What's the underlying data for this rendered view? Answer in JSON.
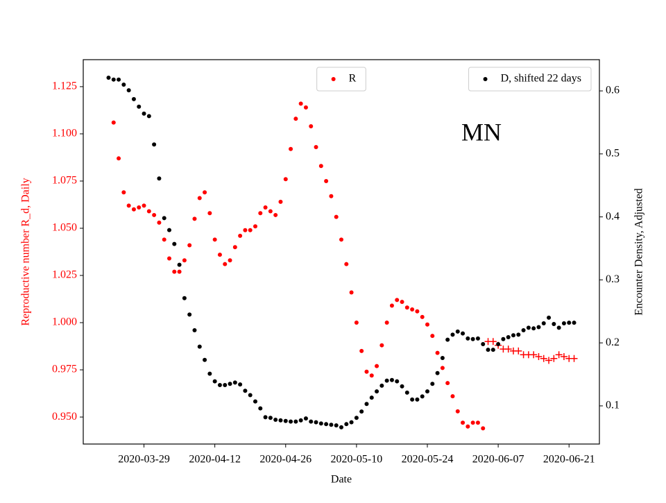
{
  "chart_data": {
    "type": "scatter",
    "annotation": "MN",
    "xlabel": "Date",
    "ylabel": "Reproductive number R_d, Daily",
    "y2label": "Encounter Density, Adjusted",
    "ylabel_color": "#ff0000",
    "x": [
      "2020-03-22",
      "2020-03-23",
      "2020-03-24",
      "2020-03-25",
      "2020-03-26",
      "2020-03-27",
      "2020-03-28",
      "2020-03-29",
      "2020-03-30",
      "2020-03-31",
      "2020-04-01",
      "2020-04-02",
      "2020-04-03",
      "2020-04-04",
      "2020-04-05",
      "2020-04-06",
      "2020-04-07",
      "2020-04-08",
      "2020-04-09",
      "2020-04-10",
      "2020-04-11",
      "2020-04-12",
      "2020-04-13",
      "2020-04-14",
      "2020-04-15",
      "2020-04-16",
      "2020-04-17",
      "2020-04-18",
      "2020-04-19",
      "2020-04-20",
      "2020-04-21",
      "2020-04-22",
      "2020-04-23",
      "2020-04-24",
      "2020-04-25",
      "2020-04-26",
      "2020-04-27",
      "2020-04-28",
      "2020-04-29",
      "2020-04-30",
      "2020-05-01",
      "2020-05-02",
      "2020-05-03",
      "2020-05-04",
      "2020-05-05",
      "2020-05-06",
      "2020-05-07",
      "2020-05-08",
      "2020-05-09",
      "2020-05-10",
      "2020-05-11",
      "2020-05-12",
      "2020-05-13",
      "2020-05-14",
      "2020-05-15",
      "2020-05-16",
      "2020-05-17",
      "2020-05-18",
      "2020-05-19",
      "2020-05-20",
      "2020-05-21",
      "2020-05-22",
      "2020-05-23",
      "2020-05-24",
      "2020-05-25",
      "2020-05-26",
      "2020-05-27",
      "2020-05-28",
      "2020-05-29",
      "2020-05-30",
      "2020-05-31",
      "2020-06-01",
      "2020-06-02",
      "2020-06-03",
      "2020-06-04",
      "2020-06-05",
      "2020-06-06",
      "2020-06-07",
      "2020-06-08",
      "2020-06-09",
      "2020-06-10",
      "2020-06-11",
      "2020-06-12",
      "2020-06-13",
      "2020-06-14",
      "2020-06-15",
      "2020-06-16",
      "2020-06-17",
      "2020-06-18",
      "2020-06-19",
      "2020-06-20",
      "2020-06-21",
      "2020-06-22"
    ],
    "xlim": [
      "2020-03-17",
      "2020-06-27"
    ],
    "xticks": [
      "2020-03-29",
      "2020-04-12",
      "2020-04-26",
      "2020-05-10",
      "2020-05-24",
      "2020-06-07",
      "2020-06-21"
    ],
    "ylim": [
      0.9357,
      1.1393
    ],
    "yticks": [
      {
        "value": 0.95,
        "label": "0.950"
      },
      0.975,
      {
        "value": 1.0,
        "label": "1.000"
      },
      1.025,
      {
        "value": 1.05,
        "label": "1.050"
      },
      1.075,
      {
        "value": 1.1,
        "label": "1.100"
      },
      1.125
    ],
    "y2lim": [
      0.0394,
      0.6496
    ],
    "y2ticks": [
      0.1,
      0.2,
      0.3,
      0.4,
      0.5,
      0.6
    ],
    "series": [
      {
        "name": "R",
        "color": "#ff0000",
        "marker": "dot",
        "axis": "y",
        "legend_loc": "upper center",
        "values": [
          null,
          1.106,
          1.087,
          1.069,
          1.062,
          1.06,
          1.061,
          1.062,
          1.059,
          1.057,
          1.053,
          1.044,
          1.034,
          1.027,
          1.027,
          1.033,
          1.041,
          1.055,
          1.066,
          1.069,
          1.058,
          1.044,
          1.036,
          1.031,
          1.033,
          1.04,
          1.046,
          1.049,
          1.049,
          1.051,
          1.058,
          1.061,
          1.059,
          1.057,
          1.064,
          1.076,
          1.092,
          1.108,
          1.116,
          1.114,
          1.104,
          1.093,
          1.083,
          1.075,
          1.067,
          1.056,
          1.044,
          1.031,
          1.016,
          1.0,
          0.985,
          0.974,
          0.972,
          0.977,
          0.988,
          1.0,
          1.009,
          1.012,
          1.011,
          1.008,
          1.007,
          1.006,
          1.003,
          0.999,
          0.993,
          0.984,
          0.976,
          0.968,
          0.961,
          0.953,
          0.947,
          0.945,
          0.947,
          0.947,
          0.944,
          null,
          null,
          null,
          null,
          null,
          null,
          null,
          null,
          null,
          null,
          null,
          null,
          null,
          null,
          null,
          null,
          null,
          null
        ]
      },
      {
        "color": "#ff0000",
        "marker": "plus",
        "axis": "y",
        "values": [
          null,
          null,
          null,
          null,
          null,
          null,
          null,
          null,
          null,
          null,
          null,
          null,
          null,
          null,
          null,
          null,
          null,
          null,
          null,
          null,
          null,
          null,
          null,
          null,
          null,
          null,
          null,
          null,
          null,
          null,
          null,
          null,
          null,
          null,
          null,
          null,
          null,
          null,
          null,
          null,
          null,
          null,
          null,
          null,
          null,
          null,
          null,
          null,
          null,
          null,
          null,
          null,
          null,
          null,
          null,
          null,
          null,
          null,
          null,
          null,
          null,
          null,
          null,
          null,
          null,
          null,
          null,
          null,
          null,
          null,
          null,
          null,
          null,
          null,
          null,
          0.99,
          0.99,
          0.988,
          0.986,
          0.986,
          0.985,
          0.985,
          0.983,
          0.983,
          0.983,
          0.982,
          0.981,
          0.98,
          0.981,
          0.983,
          0.982,
          0.981,
          0.981
        ]
      },
      {
        "name": "D, shifted 22 days",
        "color": "#000000",
        "marker": "dot",
        "axis": "y2",
        "legend_loc": "upper right",
        "values": [
          0.621,
          0.618,
          0.618,
          0.61,
          0.601,
          0.587,
          0.575,
          0.564,
          0.56,
          0.515,
          0.461,
          0.398,
          0.379,
          0.357,
          0.324,
          0.271,
          0.245,
          0.22,
          0.194,
          0.173,
          0.151,
          0.139,
          0.133,
          0.133,
          0.135,
          0.137,
          0.134,
          0.124,
          0.117,
          0.107,
          0.096,
          0.082,
          0.081,
          0.078,
          0.077,
          0.076,
          0.075,
          0.075,
          0.077,
          0.08,
          0.075,
          0.074,
          0.072,
          0.071,
          0.07,
          0.069,
          0.066,
          0.071,
          0.074,
          0.081,
          0.091,
          0.103,
          0.113,
          0.123,
          0.132,
          0.14,
          0.141,
          0.139,
          0.131,
          0.121,
          0.11,
          0.11,
          0.115,
          0.123,
          0.135,
          0.152,
          0.176,
          0.205,
          0.213,
          0.218,
          0.215,
          0.207,
          0.206,
          0.207,
          0.198,
          0.189,
          0.189,
          0.198,
          0.206,
          0.209,
          0.212,
          0.213,
          0.22,
          0.224,
          0.223,
          0.225,
          0.231,
          0.24,
          0.23,
          0.224,
          0.231,
          0.232,
          0.232
        ]
      }
    ]
  }
}
